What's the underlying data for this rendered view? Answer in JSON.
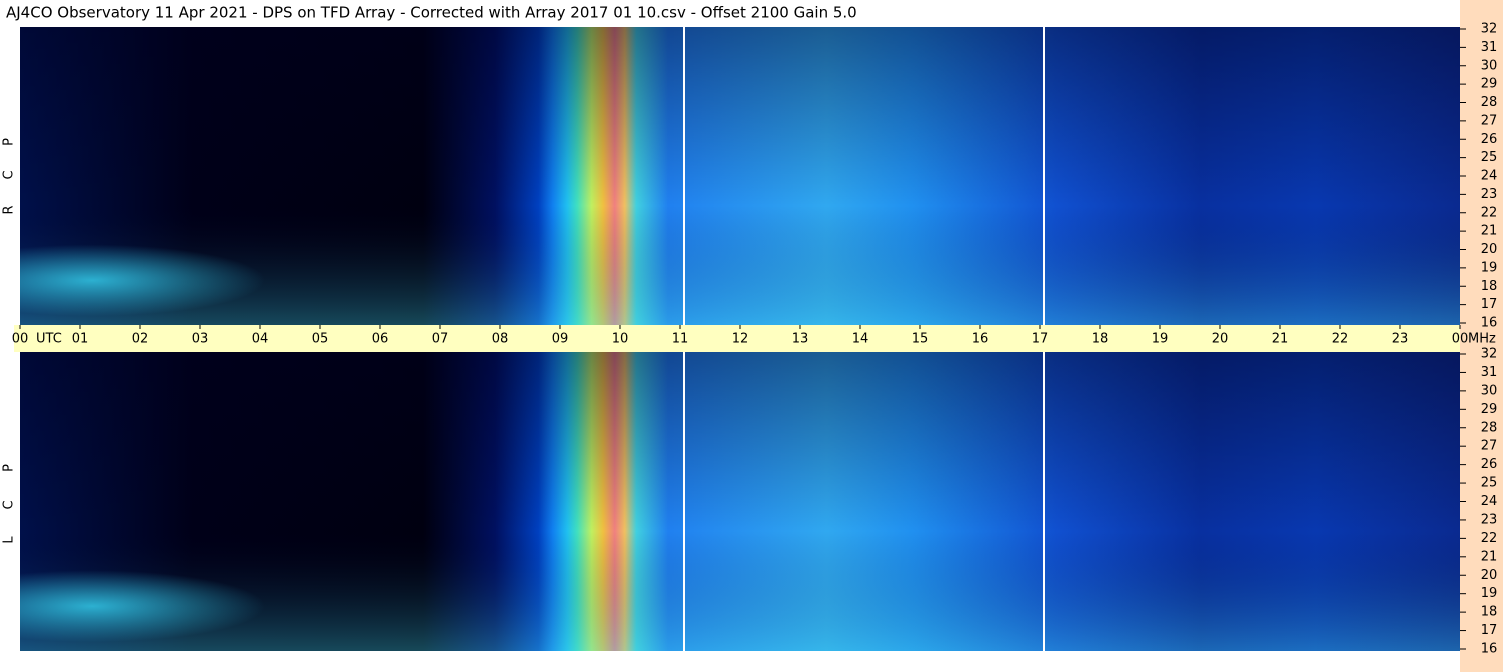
{
  "title": "AJ4CO Observatory  11 Apr 2021  -  DPS on TFD Array  -  Corrected with Array 2017 01 10.csv  -  Offset 2100  Gain 5.0",
  "time_axis": {
    "hours": [
      "00",
      "01",
      "02",
      "03",
      "04",
      "05",
      "06",
      "07",
      "08",
      "09",
      "10",
      "11",
      "12",
      "13",
      "14",
      "15",
      "16",
      "17",
      "18",
      "19",
      "20",
      "21",
      "22",
      "23",
      "00"
    ],
    "left_unit": "UTC",
    "right_unit": "MHz"
  },
  "frequency_axis": {
    "ticks": [
      16,
      17,
      18,
      19,
      20,
      21,
      22,
      23,
      24,
      25,
      26,
      27,
      28,
      29,
      30,
      31,
      32
    ],
    "lim": [
      16,
      32
    ]
  },
  "panels": [
    {
      "label": [
        "R",
        "C",
        "P"
      ]
    },
    {
      "label": [
        "L",
        "C",
        "P"
      ]
    }
  ]
}
